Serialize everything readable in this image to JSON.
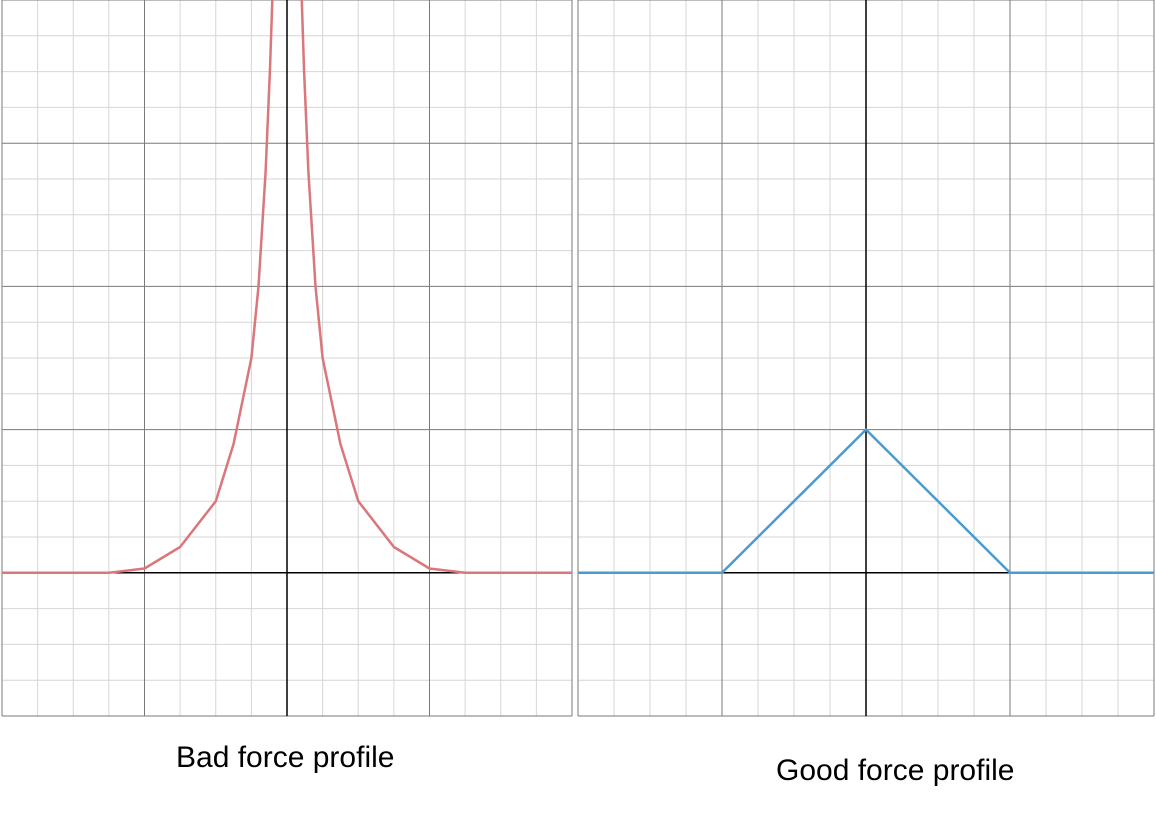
{
  "colors": {
    "bad": "#d9777a",
    "good": "#4a9bd1",
    "grid_major": "#7a7a7a",
    "grid_minor": "#d6d6d6",
    "axis": "#000000"
  },
  "chart_data": [
    {
      "type": "line",
      "caption": "Bad force profile",
      "xlim": [
        -2,
        2
      ],
      "ylim": [
        -1,
        4
      ],
      "grid": "on",
      "tick_labels": "none",
      "series": [
        {
          "color": "#d9777a",
          "x": [
            -2.0,
            -1.5,
            -1.25,
            -1.0,
            -0.75,
            -0.5,
            -0.375,
            -0.25,
            -0.2,
            -0.15,
            -0.12,
            -0.1,
            0.1,
            0.12,
            0.15,
            0.2,
            0.25,
            0.375,
            0.5,
            0.75,
            1.0,
            1.25,
            1.5,
            2.0
          ],
          "y": [
            0,
            0,
            0,
            0.03,
            0.18,
            0.5,
            0.9,
            1.5,
            2.0,
            2.8,
            3.5,
            4.1,
            4.1,
            3.5,
            2.8,
            2.0,
            1.5,
            0.9,
            0.5,
            0.18,
            0.03,
            0,
            0,
            0
          ]
        }
      ]
    },
    {
      "type": "line",
      "caption": "Good force profile",
      "xlim": [
        -2,
        2
      ],
      "ylim": [
        -1,
        4
      ],
      "grid": "on",
      "tick_labels": "none",
      "series": [
        {
          "color": "#4a9bd1",
          "x": [
            -2,
            -1,
            0,
            1,
            2
          ],
          "y": [
            0,
            0,
            1,
            0,
            0
          ]
        }
      ]
    }
  ]
}
